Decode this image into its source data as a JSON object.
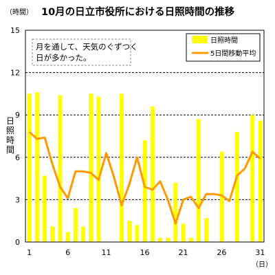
{
  "chart_data": {
    "type": "bar",
    "title": "10月の日立市役所における日照時間の推移",
    "y_unit": "（時間）",
    "x_unit": "（日）",
    "ylabel": "日照時間",
    "ylim": [
      0,
      15
    ],
    "y_ticks": [
      0,
      3,
      6,
      9,
      12,
      15
    ],
    "x_tick_labels": [
      "1",
      "6",
      "11",
      "16",
      "21",
      "26",
      "31"
    ],
    "x_tick_days": [
      1,
      6,
      11,
      16,
      21,
      26,
      31
    ],
    "annotation": [
      "月を通して、天気のぐずつく",
      "日が多かった。"
    ],
    "days": [
      1,
      2,
      3,
      4,
      5,
      6,
      7,
      8,
      9,
      10,
      11,
      12,
      13,
      14,
      15,
      16,
      17,
      18,
      19,
      20,
      21,
      22,
      23,
      24,
      25,
      26,
      27,
      28,
      29,
      30,
      31
    ],
    "series": [
      {
        "name": "日照時間",
        "type": "bar",
        "color": "#ffff00",
        "values": [
          10.5,
          10.6,
          4.7,
          1.1,
          10.4,
          0.7,
          2.4,
          1.1,
          10.5,
          10.3,
          0,
          0,
          10.5,
          1.5,
          1.2,
          7.2,
          9.6,
          0.3,
          0.3,
          4.2,
          1.3,
          0.3,
          8.7,
          1.7,
          0,
          6.4,
          0,
          7.8,
          0,
          9.0,
          8.6
        ]
      },
      {
        "name": "5日間移動平均",
        "type": "line",
        "color": "#ff9900",
        "values": [
          7.8,
          7.3,
          7.4,
          5.5,
          3.9,
          3.1,
          5.0,
          5.0,
          4.9,
          4.4,
          6.3,
          4.6,
          2.6,
          4.1,
          6.0,
          3.9,
          3.7,
          4.3,
          3.0,
          1.3,
          3.0,
          3.2,
          2.4,
          3.4,
          3.4,
          3.3,
          2.9,
          4.7,
          5.2,
          6.4,
          5.9
        ]
      }
    ]
  }
}
